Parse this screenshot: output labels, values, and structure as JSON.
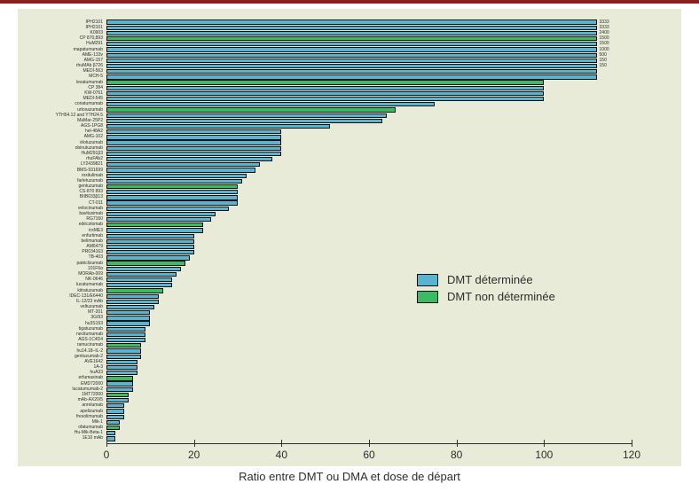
{
  "chart": {
    "type": "bar-horizontal",
    "x_title": "Ratio entre DMT ou DMA et dose de départ",
    "xlim": [
      0,
      120
    ],
    "xtick_step": 20,
    "xticks": [
      0,
      20,
      40,
      60,
      80,
      100,
      120
    ],
    "tick_fontsize": 12,
    "ylabel_fontsize": 5,
    "background_color": "#e8ebd7",
    "axis_color": "#2d2d2d",
    "bar_border_color": "#111111",
    "legend": {
      "items": [
        {
          "label": "DMT déterminée",
          "color": "#5bb4cf"
        },
        {
          "label": "DMT non déterminée",
          "color": "#3dbb64"
        }
      ]
    },
    "series_colors": {
      "det": "#5bb4cf",
      "nondet": "#3dbb64"
    },
    "cap": 112,
    "bars": [
      {
        "label": "IPH2101",
        "value": 112,
        "overflow": 3333,
        "series": "det"
      },
      {
        "label": "IPH2101",
        "value": 112,
        "overflow": 3333,
        "series": "det"
      },
      {
        "label": "K0903",
        "value": 112,
        "overflow": 2400,
        "series": "det"
      },
      {
        "label": "CP 870,893",
        "value": 112,
        "overflow": 1500,
        "series": "nondet"
      },
      {
        "label": "HuM291",
        "value": 112,
        "overflow": 1500,
        "series": "det"
      },
      {
        "label": "mapatumumab",
        "value": 112,
        "overflow": 1000,
        "series": "det"
      },
      {
        "label": "AME-133v",
        "value": 112,
        "overflow": 500,
        "series": "det"
      },
      {
        "label": "AMG-157",
        "value": 112,
        "overflow": 150,
        "series": "det"
      },
      {
        "label": "rhuMAb β726",
        "value": 112,
        "series": "det",
        "overflow": 150
      },
      {
        "label": "MEDI-563",
        "value": 112,
        "series": "det"
      },
      {
        "label": "MCH-5",
        "value": 112,
        "series": "det"
      },
      {
        "label": "lexatumumab",
        "value": 100,
        "series": "nondet"
      },
      {
        "label": "CP 384",
        "value": 100,
        "series": "det"
      },
      {
        "label": "KW-0761",
        "value": 100,
        "series": "det"
      },
      {
        "label": "MEDI-545",
        "value": 100,
        "series": "det"
      },
      {
        "label": "conatumumab",
        "value": 75,
        "series": "det"
      },
      {
        "label": "urtoxazumab",
        "value": 66,
        "series": "nondet"
      },
      {
        "label": "YTH54.12 and YTH24.5",
        "value": 64,
        "series": "det"
      },
      {
        "label": "MaMar-25P2",
        "value": 63,
        "series": "det"
      },
      {
        "label": "AGS-1PG8",
        "value": 51,
        "series": "det"
      },
      {
        "label": "hel-48A2",
        "value": 40,
        "series": "det"
      },
      {
        "label": "AMG-102",
        "value": 40,
        "series": "det"
      },
      {
        "label": "élotuzumab",
        "value": 40,
        "series": "det"
      },
      {
        "label": "obinutuzumab",
        "value": 40,
        "series": "det"
      },
      {
        "label": "HuM291β3",
        "value": 40,
        "series": "det"
      },
      {
        "label": "rhuFAb2",
        "value": 38,
        "series": "det"
      },
      {
        "label": "LY2439821",
        "value": 35,
        "series": "det"
      },
      {
        "label": "BMS-931699",
        "value": 34,
        "series": "det"
      },
      {
        "label": "roxitulimab",
        "value": 32,
        "series": "det"
      },
      {
        "label": "farletuzumab",
        "value": 31,
        "series": "det"
      },
      {
        "label": "gentuzumab",
        "value": 30,
        "series": "nondet"
      },
      {
        "label": "CS-870 893",
        "value": 30,
        "series": "det"
      },
      {
        "label": "BIIB033β13",
        "value": 30,
        "series": "det"
      },
      {
        "label": "CT-011",
        "value": 30,
        "series": "det"
      },
      {
        "label": "velocinumab",
        "value": 28,
        "series": "det"
      },
      {
        "label": "bavituximab",
        "value": 25,
        "series": "det"
      },
      {
        "label": "RG7160",
        "value": 24,
        "series": "det"
      },
      {
        "label": "edécolomab",
        "value": 22,
        "series": "nondet"
      },
      {
        "label": "trxME3",
        "value": 22,
        "series": "det"
      },
      {
        "label": "enfurtimab",
        "value": 20,
        "series": "det"
      },
      {
        "label": "belimumab",
        "value": 20,
        "series": "det"
      },
      {
        "label": "AM6479",
        "value": 20,
        "series": "det"
      },
      {
        "label": "PR034163",
        "value": 20,
        "series": "det"
      },
      {
        "label": "TB-403",
        "value": 19,
        "series": "det"
      },
      {
        "label": "patéclizumab",
        "value": 18,
        "series": "nondet"
      },
      {
        "label": "101F6α",
        "value": 17,
        "series": "det"
      },
      {
        "label": "MORAb-009",
        "value": 16,
        "series": "det"
      },
      {
        "label": "NK-0646",
        "value": 15,
        "series": "det"
      },
      {
        "label": "lucatumumab",
        "value": 15,
        "series": "det"
      },
      {
        "label": "kitratuzumab",
        "value": 13,
        "series": "nondet"
      },
      {
        "label": "IDEC-131/E6440",
        "value": 12,
        "series": "det"
      },
      {
        "label": "IL-12/23 mAb",
        "value": 12,
        "series": "det"
      },
      {
        "label": "veltuzumab",
        "value": 11,
        "series": "det"
      },
      {
        "label": "MT-201",
        "value": 10,
        "series": "det"
      },
      {
        "label": "3G/93",
        "value": 10,
        "series": "det"
      },
      {
        "label": "hu3S193",
        "value": 10,
        "series": "det"
      },
      {
        "label": "tigatuzumab",
        "value": 9,
        "series": "det"
      },
      {
        "label": "necitumumab",
        "value": 9,
        "series": "det"
      },
      {
        "label": "AGS-1C4D4",
        "value": 9,
        "series": "det"
      },
      {
        "label": "ramucirumab",
        "value": 8,
        "series": "nondet"
      },
      {
        "label": "hu14.18–IL-2",
        "value": 8,
        "series": "det"
      },
      {
        "label": "gentuzumab-2",
        "value": 8,
        "series": "det"
      },
      {
        "label": "AVE1642",
        "value": 7,
        "series": "det"
      },
      {
        "label": "1A-3",
        "value": 7,
        "series": "det"
      },
      {
        "label": "huA33",
        "value": 7,
        "series": "det"
      },
      {
        "label": "erfumaxinab",
        "value": 6,
        "series": "nondet"
      },
      {
        "label": "EMD72000",
        "value": 6,
        "series": "det"
      },
      {
        "label": "lucatumumab-2",
        "value": 6,
        "series": "det"
      },
      {
        "label": "1MT72000",
        "value": 5,
        "series": "nondet"
      },
      {
        "label": "mAb-AX20/5",
        "value": 5,
        "series": "det"
      },
      {
        "label": "anrelumab",
        "value": 4,
        "series": "det"
      },
      {
        "label": "apelizumab",
        "value": 4,
        "series": "det"
      },
      {
        "label": "fresolimumab",
        "value": 4,
        "series": "det"
      },
      {
        "label": "Mik-1",
        "value": 3,
        "series": "det"
      },
      {
        "label": "ofatumumab",
        "value": 3,
        "series": "nondet"
      },
      {
        "label": "Hu-Mik-Beta-1",
        "value": 2,
        "series": "det"
      },
      {
        "label": "1E10 mAb",
        "value": 2,
        "series": "det"
      }
    ]
  }
}
